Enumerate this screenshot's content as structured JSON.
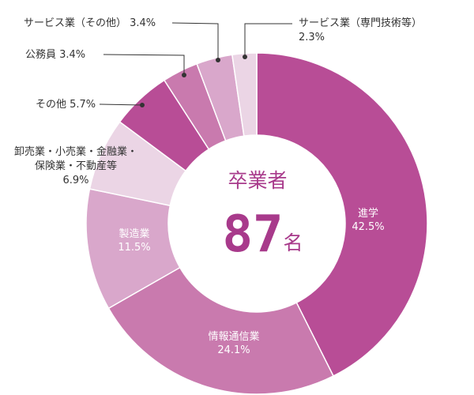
{
  "center": {
    "title": "卒業者",
    "count": "87",
    "unit": "名"
  },
  "chart_data": {
    "type": "pie",
    "style": "donut",
    "start": "12 o'clock, clockwise",
    "slices": [
      {
        "label": "進学",
        "value": 42.5,
        "value_label": "42.5%",
        "color": "#b84d96"
      },
      {
        "label": "情報通信業",
        "value": 24.1,
        "value_label": "24.1%",
        "color": "#c97aae"
      },
      {
        "label": "製造業",
        "value": 11.5,
        "value_label": "11.5%",
        "color": "#d9a7cb"
      },
      {
        "label": "卸売業・小売業・金融業・保険業・不動産等",
        "label_lines": [
          "卸売業・小売業・金融業・",
          "保険業・不動産等"
        ],
        "value": 6.9,
        "value_label": "6.9%",
        "color": "#ebd5e5"
      },
      {
        "label": "その他",
        "value": 5.7,
        "value_label": "5.7%",
        "color": "#b84d96"
      },
      {
        "label": "公務員",
        "value": 3.4,
        "value_label": "3.4%",
        "color": "#c97aae"
      },
      {
        "label": "サービス業（その他）",
        "value": 3.4,
        "value_label": "3.4%",
        "color": "#d9a7cb"
      },
      {
        "label": "サービス業（専門技術等）",
        "value": 2.3,
        "value_label": "2.3%",
        "color": "#ebd5e5"
      }
    ]
  }
}
